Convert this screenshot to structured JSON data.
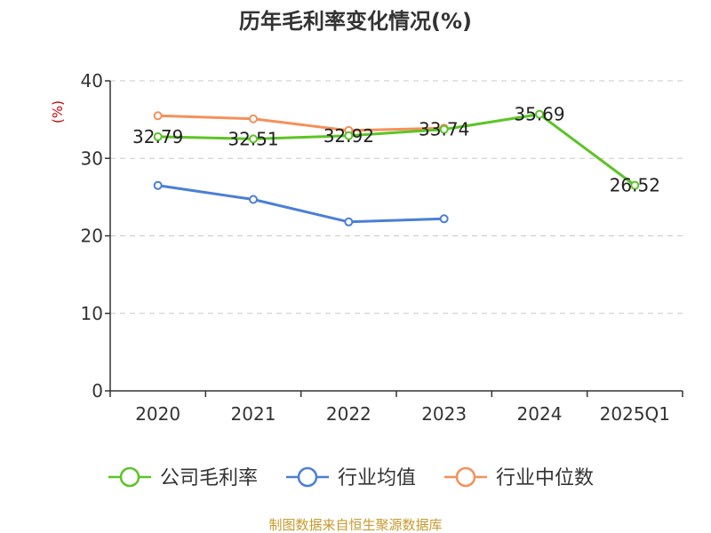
{
  "chart_data": {
    "type": "line",
    "title": "历年毛利率变化情况(%)",
    "ylabel": "(%)",
    "xlabel": "",
    "categories": [
      "2020",
      "2021",
      "2022",
      "2023",
      "2024",
      "2025Q1"
    ],
    "ylim": [
      0,
      40
    ],
    "yticks": [
      "0",
      "10",
      "20",
      "30",
      "40"
    ],
    "grid": true,
    "legend_position": "bottom",
    "series": [
      {
        "name": "公司毛利率",
        "color": "#5cc426",
        "values": [
          32.79,
          32.51,
          32.92,
          33.74,
          35.69,
          26.52
        ],
        "labels": [
          "32.79",
          "32.51",
          "32.92",
          "33.74",
          "35.69",
          "26.52"
        ]
      },
      {
        "name": "行业均值",
        "color": "#4a7fd6",
        "values": [
          26.5,
          24.7,
          21.8,
          22.2,
          null,
          null
        ]
      },
      {
        "name": "行业中位数",
        "color": "#f5905a",
        "values": [
          35.5,
          35.1,
          33.6,
          33.9,
          null,
          null
        ]
      }
    ]
  },
  "footer": {
    "source": "制图数据来自恒生聚源数据库"
  }
}
